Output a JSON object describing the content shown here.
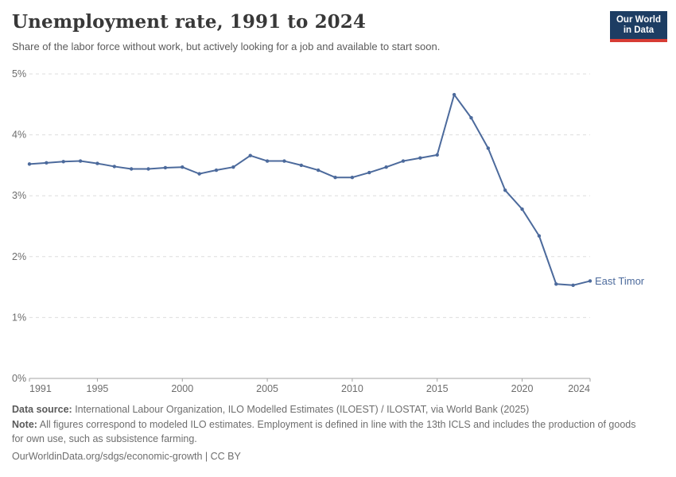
{
  "header": {
    "title": "Unemployment rate, 1991 to 2024",
    "subtitle": "Share of the labor force without work, but actively looking for a job and available to start soon.",
    "logo": {
      "line1": "Our World",
      "line2": "in Data",
      "bg_color": "#1d3d63",
      "bar_color": "#d73c34"
    }
  },
  "chart_data": {
    "type": "line",
    "title": "Unemployment rate, 1991 to 2024",
    "xlabel": "",
    "ylabel": "",
    "xlim": [
      1991,
      2024
    ],
    "ylim": [
      0,
      5
    ],
    "grid": "horizontal-dashed",
    "legend_position": "end-of-line-label",
    "yticks": [
      "0%",
      "1%",
      "2%",
      "3%",
      "4%",
      "5%"
    ],
    "xticks": [
      1991,
      1995,
      2000,
      2005,
      2010,
      2015,
      2020,
      2024
    ],
    "series": [
      {
        "name": "East Timor",
        "color": "#4c6a9c",
        "x": [
          1991,
          1992,
          1993,
          1994,
          1995,
          1996,
          1997,
          1998,
          1999,
          2000,
          2001,
          2002,
          2003,
          2004,
          2005,
          2006,
          2007,
          2008,
          2009,
          2010,
          2011,
          2012,
          2013,
          2014,
          2015,
          2016,
          2017,
          2018,
          2019,
          2020,
          2021,
          2022,
          2023,
          2024
        ],
        "values": [
          3.52,
          3.54,
          3.56,
          3.57,
          3.53,
          3.48,
          3.44,
          3.44,
          3.46,
          3.47,
          3.36,
          3.42,
          3.47,
          3.66,
          3.57,
          3.57,
          3.5,
          3.42,
          3.3,
          3.3,
          3.38,
          3.47,
          3.57,
          3.62,
          3.67,
          4.66,
          4.28,
          3.78,
          3.09,
          2.78,
          2.34,
          1.55,
          1.53,
          1.6
        ]
      }
    ],
    "end_label": "East Timor"
  },
  "footer": {
    "data_source_label": "Data source:",
    "data_source_text": " International Labour Organization, ILO Modelled Estimates (ILOEST) / ILOSTAT, via World Bank (2025)",
    "note_label": "Note:",
    "note_text": " All figures correspond to modeled ILO estimates. Employment is defined in line with the 13th ICLS and includes the production of goods for own use, such as subsistence farming.",
    "license": "OurWorldinData.org/sdgs/economic-growth | CC BY"
  },
  "colors": {
    "line": "#4c6a9c",
    "gridline": "#dddddd",
    "axis": "#a3a3a3",
    "tick_label": "#6d6d6d"
  }
}
